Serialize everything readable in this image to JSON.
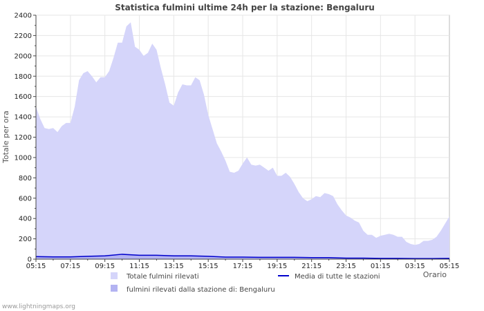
{
  "chart_data": {
    "type": "area",
    "title": "Statistica fulmini ultime 24h per la stazione: Bengaluru",
    "xlabel": "Orario",
    "ylabel": "Totale per ora",
    "ylim": [
      0,
      2400
    ],
    "yticks": [
      "0",
      "200",
      "400",
      "600",
      "800",
      "1000",
      "1200",
      "1400",
      "1600",
      "1800",
      "2000",
      "2200",
      "2400"
    ],
    "xtick_labels": [
      "05:15",
      "07:15",
      "09:15",
      "11:15",
      "13:15",
      "15:15",
      "17:15",
      "19:15",
      "21:15",
      "23:15",
      "01:15",
      "03:15",
      "05:15"
    ],
    "x_range_hours": [
      0,
      24
    ],
    "series": [
      {
        "name": "Totale fulmini rilevati",
        "color": "#d5d5fa",
        "x": [
          0,
          0.25,
          0.5,
          0.75,
          1,
          1.25,
          1.5,
          1.75,
          2,
          2.25,
          2.5,
          2.75,
          3,
          3.25,
          3.5,
          3.75,
          4,
          4.25,
          4.5,
          4.75,
          5,
          5.25,
          5.5,
          5.75,
          6,
          6.25,
          6.5,
          6.75,
          7,
          7.25,
          7.5,
          7.75,
          8,
          8.25,
          8.5,
          8.75,
          9,
          9.25,
          9.5,
          9.75,
          10,
          10.25,
          10.5,
          10.75,
          11,
          11.25,
          11.5,
          11.75,
          12,
          12.25,
          12.5,
          12.75,
          13,
          13.25,
          13.5,
          13.75,
          14,
          14.25,
          14.5,
          14.75,
          15,
          15.25,
          15.5,
          15.75,
          16,
          16.25,
          16.5,
          16.75,
          17,
          17.25,
          17.5,
          17.75,
          18,
          18.25,
          18.5,
          18.75,
          19,
          19.25,
          19.5,
          19.75,
          20,
          20.25,
          20.5,
          20.75,
          21,
          21.25,
          21.5,
          21.75,
          22,
          22.25,
          22.5,
          22.75,
          23,
          23.25,
          23.5,
          23.75,
          24
        ],
        "values": [
          1500,
          1380,
          1290,
          1280,
          1290,
          1250,
          1310,
          1340,
          1340,
          1500,
          1760,
          1830,
          1850,
          1800,
          1740,
          1790,
          1790,
          1850,
          1980,
          2130,
          2130,
          2290,
          2330,
          2090,
          2060,
          2000,
          2030,
          2120,
          2060,
          1880,
          1720,
          1540,
          1510,
          1640,
          1720,
          1710,
          1710,
          1790,
          1760,
          1620,
          1420,
          1280,
          1140,
          1060,
          970,
          860,
          850,
          870,
          940,
          1000,
          930,
          920,
          930,
          900,
          870,
          900,
          820,
          820,
          850,
          810,
          740,
          660,
          600,
          570,
          590,
          620,
          610,
          650,
          640,
          620,
          540,
          480,
          430,
          410,
          380,
          360,
          280,
          240,
          240,
          210,
          230,
          240,
          250,
          240,
          220,
          220,
          170,
          150,
          140,
          150,
          180,
          180,
          190,
          220,
          280,
          350,
          420
        ]
      },
      {
        "name": "fulmini rilevati dalla stazione di: Bengaluru",
        "color": "#b3b3f2",
        "x": [
          0,
          1,
          2,
          3,
          4,
          5,
          6,
          7,
          8,
          9,
          10,
          11,
          12,
          13,
          14,
          15,
          16,
          17,
          18,
          19,
          20,
          21,
          22,
          23,
          24
        ],
        "values": [
          35,
          30,
          30,
          35,
          40,
          55,
          45,
          45,
          40,
          40,
          35,
          25,
          25,
          25,
          25,
          25,
          20,
          20,
          15,
          15,
          12,
          12,
          10,
          10,
          12
        ]
      },
      {
        "name": "Media di tutte le stazioni",
        "color": "#0000cc",
        "x": [
          0,
          1,
          2,
          3,
          4,
          5,
          6,
          7,
          8,
          9,
          10,
          11,
          12,
          13,
          14,
          15,
          16,
          17,
          18,
          19,
          20,
          21,
          22,
          23,
          24
        ],
        "values": [
          25,
          22,
          22,
          28,
          32,
          48,
          38,
          38,
          32,
          32,
          28,
          20,
          20,
          18,
          18,
          18,
          15,
          15,
          10,
          10,
          8,
          8,
          6,
          6,
          8
        ]
      }
    ],
    "legend": [
      {
        "label": "Totale fulmini rilevati",
        "kind": "swatch",
        "color": "#d5d5fa"
      },
      {
        "label": "fulmini rilevati dalla stazione di: Bengaluru",
        "kind": "swatch",
        "color": "#b3b3f2"
      },
      {
        "label": "Media di tutte le stazioni",
        "kind": "line",
        "color": "#0000cc"
      }
    ],
    "footer": "www.lightningmaps.org"
  }
}
